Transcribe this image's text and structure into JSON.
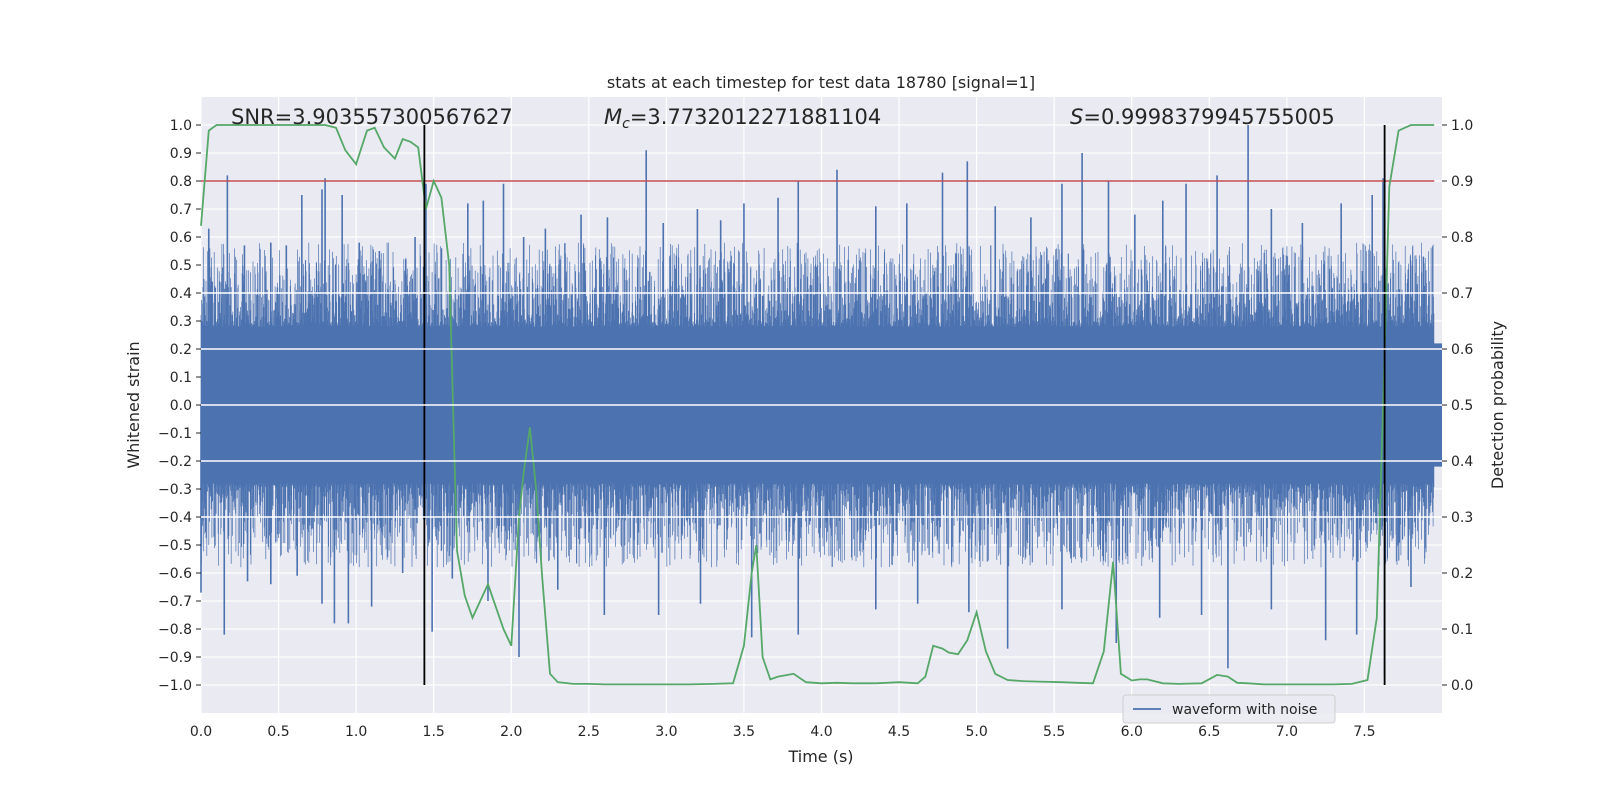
{
  "chart_data": {
    "type": "line",
    "title": "stats at each timestep for test data 18780 [signal=1]",
    "xlabel": "Time (s)",
    "ylabel_left": "Whitened strain",
    "ylabel_right": "Detection probability",
    "xlim": [
      0.0,
      8.0
    ],
    "ylim_left": [
      -1.1,
      1.1
    ],
    "ylim_right": [
      -0.05,
      1.05
    ],
    "x_ticks": [
      "0.0",
      "0.5",
      "1.0",
      "1.5",
      "2.0",
      "2.5",
      "3.0",
      "3.5",
      "4.0",
      "4.5",
      "5.0",
      "5.5",
      "6.0",
      "6.5",
      "7.0",
      "7.5"
    ],
    "y_ticks_left": [
      "1.0",
      "0.9",
      "0.8",
      "0.7",
      "0.6",
      "0.5",
      "0.4",
      "0.3",
      "0.2",
      "0.1",
      "0.0",
      "−0.1",
      "−0.2",
      "−0.3",
      "−0.4",
      "−0.5",
      "−0.6",
      "−0.7",
      "−0.8",
      "−0.9",
      "−1.0"
    ],
    "y_ticks_right": [
      "1.0",
      "0.9",
      "0.8",
      "0.7",
      "0.6",
      "0.5",
      "0.4",
      "0.3",
      "0.2",
      "0.1",
      "0.0"
    ],
    "annotations": {
      "snr": "SNR=3.903557300567627",
      "mc_symbol": "M",
      "mc_sub": "c",
      "mc_value": "=3.7732012271881104",
      "s_symbol": "S",
      "s_value": "=0.9998379945755005"
    },
    "threshold": {
      "name": "threshold",
      "value": 0.9,
      "axis": "right",
      "color": "#c44e52"
    },
    "vertical_markers": [
      1.44,
      7.63
    ],
    "series": [
      {
        "name": "waveform with noise",
        "axis": "left",
        "color": "#4c72b0",
        "style": "dense noise envelope",
        "envelope_core": [
          -0.4,
          0.4
        ],
        "peaks_up": [
          [
            0.05,
            0.63
          ],
          [
            0.17,
            0.82
          ],
          [
            0.28,
            0.57
          ],
          [
            0.45,
            0.58
          ],
          [
            0.55,
            0.57
          ],
          [
            0.65,
            0.75
          ],
          [
            0.78,
            0.77
          ],
          [
            0.8,
            0.81
          ],
          [
            0.91,
            0.75
          ],
          [
            1.02,
            0.58
          ],
          [
            1.15,
            0.55
          ],
          [
            1.32,
            0.52
          ],
          [
            1.38,
            0.6
          ],
          [
            1.45,
            0.79
          ],
          [
            1.55,
            0.56
          ],
          [
            1.72,
            0.72
          ],
          [
            1.82,
            0.73
          ],
          [
            1.95,
            0.79
          ],
          [
            2.08,
            0.6
          ],
          [
            2.22,
            0.63
          ],
          [
            2.45,
            0.68
          ],
          [
            2.62,
            0.67
          ],
          [
            2.87,
            0.91
          ],
          [
            2.98,
            0.65
          ],
          [
            3.2,
            0.7
          ],
          [
            3.35,
            0.66
          ],
          [
            3.5,
            0.72
          ],
          [
            3.72,
            0.74
          ],
          [
            3.85,
            0.8
          ],
          [
            4.1,
            0.84
          ],
          [
            4.35,
            0.71
          ],
          [
            4.55,
            0.72
          ],
          [
            4.78,
            0.83
          ],
          [
            4.94,
            0.87
          ],
          [
            5.12,
            0.71
          ],
          [
            5.35,
            0.67
          ],
          [
            5.55,
            0.79
          ],
          [
            5.68,
            0.9
          ],
          [
            5.85,
            0.8
          ],
          [
            6.02,
            0.68
          ],
          [
            6.2,
            0.73
          ],
          [
            6.35,
            0.79
          ],
          [
            6.55,
            0.82
          ],
          [
            6.75,
            1.0
          ],
          [
            6.9,
            0.7
          ],
          [
            7.1,
            0.65
          ],
          [
            7.35,
            0.72
          ],
          [
            7.55,
            0.75
          ],
          [
            7.62,
            0.81
          ],
          [
            7.88,
            0.53
          ]
        ],
        "peaks_down": [
          [
            0.0,
            -0.67
          ],
          [
            0.15,
            -0.82
          ],
          [
            0.3,
            -0.63
          ],
          [
            0.45,
            -0.64
          ],
          [
            0.62,
            -0.61
          ],
          [
            0.78,
            -0.71
          ],
          [
            0.86,
            -0.78
          ],
          [
            0.95,
            -0.78
          ],
          [
            1.1,
            -0.72
          ],
          [
            1.3,
            -0.6
          ],
          [
            1.49,
            -0.81
          ],
          [
            1.62,
            -0.62
          ],
          [
            1.85,
            -0.7
          ],
          [
            2.05,
            -0.9
          ],
          [
            2.3,
            -0.66
          ],
          [
            2.6,
            -0.75
          ],
          [
            2.95,
            -0.75
          ],
          [
            3.22,
            -0.71
          ],
          [
            3.55,
            -0.83
          ],
          [
            3.85,
            -0.82
          ],
          [
            4.35,
            -0.73
          ],
          [
            4.62,
            -0.71
          ],
          [
            4.95,
            -0.74
          ],
          [
            5.2,
            -0.87
          ],
          [
            5.55,
            -0.73
          ],
          [
            5.9,
            -0.85
          ],
          [
            6.18,
            -0.76
          ],
          [
            6.45,
            -0.75
          ],
          [
            6.62,
            -0.94
          ],
          [
            6.9,
            -0.73
          ],
          [
            7.25,
            -0.84
          ],
          [
            7.45,
            -0.82
          ],
          [
            7.63,
            -0.97
          ],
          [
            7.8,
            -0.65
          ]
        ]
      },
      {
        "name": "detection probability",
        "axis": "right",
        "color": "#55a868",
        "x": [
          0.0,
          0.05,
          0.1,
          0.2,
          0.3,
          0.4,
          0.5,
          0.6,
          0.7,
          0.8,
          0.87,
          0.93,
          1.0,
          1.07,
          1.12,
          1.18,
          1.25,
          1.3,
          1.35,
          1.4,
          1.45,
          1.5,
          1.55,
          1.6,
          1.65,
          1.7,
          1.75,
          1.8,
          1.85,
          1.9,
          1.95,
          2.0,
          2.05,
          2.08,
          2.12,
          2.16,
          2.2,
          2.25,
          2.3,
          2.4,
          2.5,
          2.6,
          2.75,
          2.9,
          3.0,
          3.15,
          3.3,
          3.43,
          3.5,
          3.55,
          3.58,
          3.62,
          3.67,
          3.72,
          3.82,
          3.9,
          4.0,
          4.1,
          4.2,
          4.35,
          4.5,
          4.62,
          4.67,
          4.72,
          4.78,
          4.82,
          4.88,
          4.94,
          5.0,
          5.06,
          5.12,
          5.2,
          5.3,
          5.4,
          5.55,
          5.65,
          5.75,
          5.82,
          5.88,
          5.93,
          6.0,
          6.05,
          6.1,
          6.2,
          6.3,
          6.45,
          6.55,
          6.62,
          6.68,
          6.75,
          6.85,
          7.0,
          7.15,
          7.3,
          7.42,
          7.52,
          7.58,
          7.62,
          7.66,
          7.72,
          7.8,
          7.88,
          7.95
        ],
        "y": [
          0.82,
          0.99,
          1.0,
          1.0,
          1.0,
          1.0,
          1.0,
          1.0,
          1.0,
          1.0,
          0.995,
          0.955,
          0.93,
          0.99,
          0.995,
          0.96,
          0.94,
          0.975,
          0.97,
          0.96,
          0.85,
          0.9,
          0.87,
          0.75,
          0.24,
          0.16,
          0.12,
          0.15,
          0.18,
          0.14,
          0.1,
          0.07,
          0.3,
          0.38,
          0.46,
          0.35,
          0.19,
          0.02,
          0.005,
          0.002,
          0.002,
          0.001,
          0.001,
          0.001,
          0.001,
          0.001,
          0.002,
          0.003,
          0.07,
          0.2,
          0.25,
          0.05,
          0.01,
          0.015,
          0.02,
          0.005,
          0.003,
          0.004,
          0.003,
          0.003,
          0.005,
          0.003,
          0.015,
          0.07,
          0.065,
          0.058,
          0.055,
          0.08,
          0.13,
          0.06,
          0.02,
          0.009,
          0.007,
          0.006,
          0.005,
          0.004,
          0.003,
          0.06,
          0.22,
          0.02,
          0.008,
          0.01,
          0.01,
          0.003,
          0.002,
          0.003,
          0.018,
          0.015,
          0.004,
          0.003,
          0.001,
          0.001,
          0.001,
          0.001,
          0.002,
          0.009,
          0.12,
          0.5,
          0.89,
          0.99,
          1.0,
          1.0,
          1.0
        ]
      }
    ],
    "legend": {
      "entries": [
        "waveform with noise"
      ],
      "location": "lower-right"
    }
  }
}
